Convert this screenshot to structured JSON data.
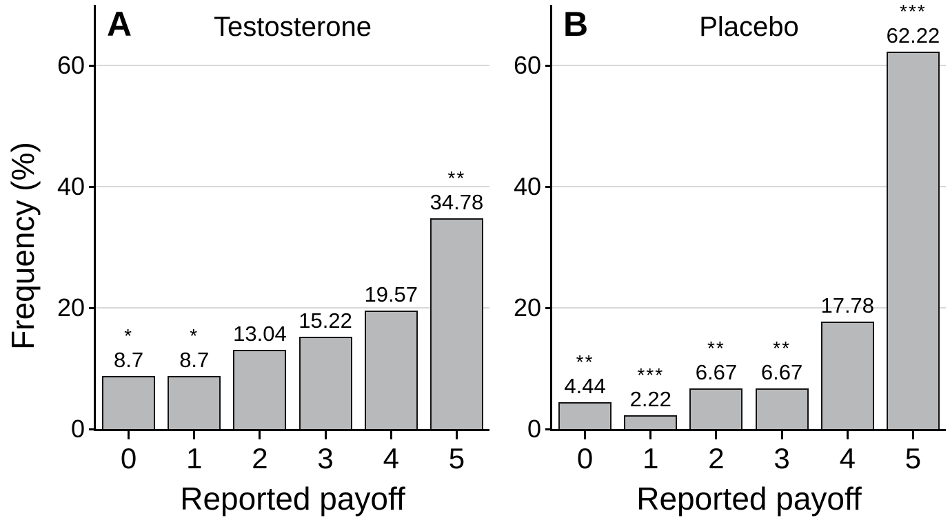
{
  "figure": {
    "ylabel": "Frequency (%)",
    "xlabel": "Reported payoff"
  },
  "colors": {
    "background": "#ffffff",
    "bar_fill": "#b7b9bb",
    "bar_border": "#141414",
    "gridline": "#d8d8d8",
    "axis": "#000000",
    "text": "#000000"
  },
  "chart_data": [
    {
      "type": "bar",
      "panel_label": "A",
      "title": "Testosterone",
      "xlabel": "Reported payoff",
      "ylabel": "Frequency (%)",
      "categories": [
        "0",
        "1",
        "2",
        "3",
        "4",
        "5"
      ],
      "values": [
        8.7,
        8.7,
        13.04,
        15.22,
        19.57,
        34.78
      ],
      "bar_value_labels": [
        "8.7",
        "8.7",
        "13.04",
        "15.22",
        "19.57",
        "34.78"
      ],
      "significance": [
        "*",
        "*",
        "",
        "",
        "",
        "**"
      ],
      "yticks": [
        0,
        20,
        40,
        60
      ],
      "ylim": [
        0,
        70
      ],
      "grid": "horizontal",
      "legend": "none"
    },
    {
      "type": "bar",
      "panel_label": "B",
      "title": "Placebo",
      "xlabel": "Reported payoff",
      "ylabel": "Frequency (%)",
      "categories": [
        "0",
        "1",
        "2",
        "3",
        "4",
        "5"
      ],
      "values": [
        4.44,
        2.22,
        6.67,
        6.67,
        17.78,
        62.22
      ],
      "bar_value_labels": [
        "4.44",
        "2.22",
        "6.67",
        "6.67",
        "17.78",
        "62.22"
      ],
      "significance": [
        "**",
        "***",
        "**",
        "**",
        "",
        "***"
      ],
      "yticks": [
        0,
        20,
        40,
        60
      ],
      "ylim": [
        0,
        70
      ],
      "grid": "horizontal",
      "legend": "none"
    }
  ]
}
